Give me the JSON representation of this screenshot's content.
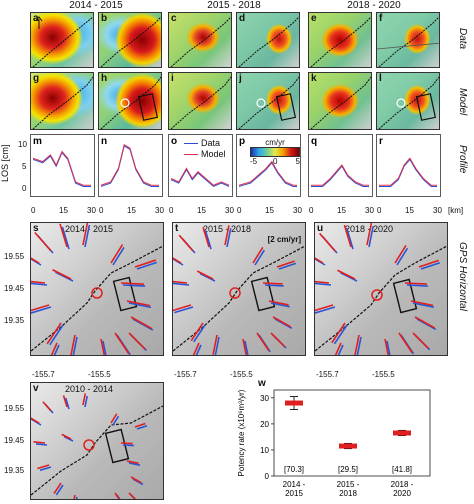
{
  "periods": [
    "2014 - 2015",
    "2015 - 2018",
    "2018 - 2020"
  ],
  "row_labels": {
    "data": "Data",
    "model": "Model",
    "profile": "Profile",
    "gps": "GPS Horizontal"
  },
  "panels": {
    "data": [
      "a",
      "b",
      "c",
      "d",
      "e",
      "f"
    ],
    "model": [
      "g",
      "h",
      "i",
      "j",
      "k",
      "l"
    ],
    "profile": [
      "m",
      "n",
      "o",
      "p",
      "q",
      "r"
    ],
    "gps": [
      "s",
      "t",
      "u"
    ],
    "gps_2010": "v",
    "potency": "w"
  },
  "profile": {
    "ylabel": "LOS [cm]",
    "xunit": "[km]",
    "yticks": [
      "0",
      "5",
      "10"
    ],
    "xticks": [
      "0",
      "15",
      "30"
    ],
    "legend": {
      "data": "Data",
      "model": "Model"
    },
    "colors": {
      "data": "#2a4fd6",
      "model": "#e0314b"
    },
    "colorbar": {
      "title": "cm/yr",
      "min": "-5",
      "mid": "0",
      "max": "5"
    }
  },
  "gps": {
    "titles": [
      "2014 - 2015",
      "2015 - 2018",
      "2018 - 2020"
    ],
    "title_2010": "2010 - 2014",
    "scale_label": "[2 cm/yr]",
    "lat_ticks": [
      "19.55",
      "19.45",
      "19.35"
    ],
    "lon_ticks": [
      "-155.7",
      "-155.5"
    ],
    "colors": {
      "data": "#2a55d6",
      "model": "#e02020"
    }
  },
  "chart_data": {
    "type": "scatter",
    "title": "",
    "xlabel": "",
    "ylabel": "Potency rate (x10⁶m³/yr)",
    "categories": [
      "2014 - 2015",
      "2015 - 2018",
      "2018 - 2020"
    ],
    "category_lines": [
      [
        "2014 -",
        "2015"
      ],
      [
        "2015 -",
        "2018"
      ],
      [
        "2018 -",
        "2020"
      ]
    ],
    "values": [
      28,
      11.5,
      16.5
    ],
    "error_low": [
      25.5,
      10.5,
      15.5
    ],
    "error_high": [
      30.5,
      12.5,
      17.5
    ],
    "annotations": [
      "[70.3]",
      "[29.5]",
      "[41.8]"
    ],
    "ylim": [
      0,
      33
    ],
    "yticks": [
      0,
      10,
      20,
      30
    ],
    "marker_color": "#e02020"
  }
}
